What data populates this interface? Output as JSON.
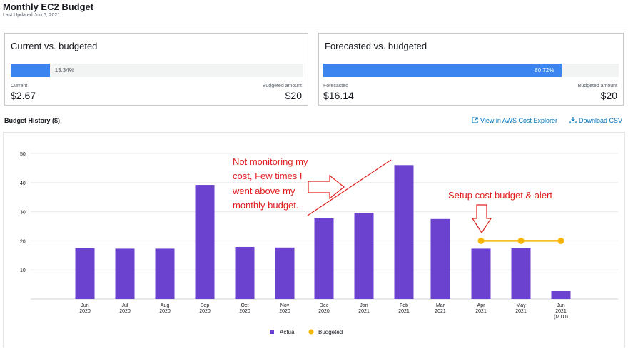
{
  "header": {
    "title": "Monthly EC2 Budget",
    "subtitle": "Last Updated Jun 6, 2021"
  },
  "cards": {
    "current": {
      "title": "Current vs. budgeted",
      "percent": "13.34%",
      "fill_fraction": 0.1334,
      "left_label": "Current",
      "left_value": "$2.67",
      "right_label": "Budgeted amount",
      "right_value": "$20"
    },
    "forecast": {
      "title": "Forecasted vs. budgeted",
      "percent": "80.72%",
      "fill_fraction": 0.8072,
      "left_label": "Forecasted",
      "left_value": "$16.14",
      "right_label": "Budgeted amount",
      "right_value": "$20"
    }
  },
  "history": {
    "title": "Budget History ($)",
    "link_explorer": "View in AWS Cost Explorer",
    "link_csv": "Download CSV"
  },
  "colors": {
    "actual": "#6b42d0",
    "budgeted": "#f5b400",
    "progress": "#3a85f0",
    "annotation": "#e02020"
  },
  "chart_data": {
    "type": "bar",
    "categories": [
      [
        "Jun",
        "2020"
      ],
      [
        "Jul",
        "2020"
      ],
      [
        "Aug",
        "2020"
      ],
      [
        "Sep",
        "2020"
      ],
      [
        "Oct",
        "2020"
      ],
      [
        "Nov",
        "2020"
      ],
      [
        "Dec",
        "2020"
      ],
      [
        "Jan",
        "2021"
      ],
      [
        "Feb",
        "2021"
      ],
      [
        "Mar",
        "2021"
      ],
      [
        "Apr",
        "2021"
      ],
      [
        "May",
        "2021"
      ],
      [
        "Jun",
        "2021",
        "(MTD)"
      ]
    ],
    "series": [
      {
        "name": "Actual",
        "type": "bar",
        "values": [
          17.5,
          17.3,
          17.3,
          39.2,
          17.9,
          17.7,
          27.7,
          29.6,
          46.0,
          27.5,
          17.3,
          17.4,
          2.7
        ]
      },
      {
        "name": "Budgeted",
        "type": "line",
        "values": [
          null,
          null,
          null,
          null,
          null,
          null,
          null,
          null,
          null,
          null,
          20,
          20,
          20
        ]
      }
    ],
    "yticks": [
      10,
      20,
      30,
      40,
      50
    ],
    "ylim": [
      0,
      50
    ],
    "grid": true,
    "legend": "bottom-center",
    "annotations": [
      "Not monitoring my",
      "cost, Few times I",
      "went above my",
      "monthly budget.",
      "Setup cost budget & alert"
    ]
  }
}
